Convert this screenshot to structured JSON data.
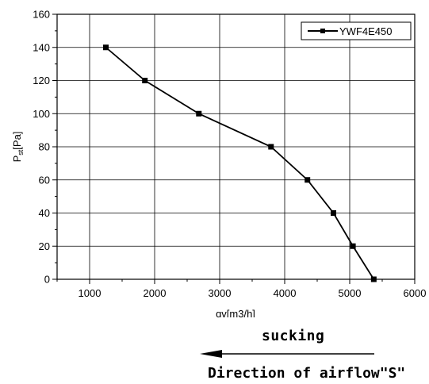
{
  "chart_data": {
    "type": "line",
    "title": "",
    "xlabel": "qv[m3/h]",
    "ylabel_main": "P",
    "ylabel_sub": "st",
    "ylabel_unit": "[Pa]",
    "xlim": [
      500,
      6000
    ],
    "ylim": [
      0,
      160
    ],
    "xticks": [
      1000,
      2000,
      3000,
      4000,
      5000,
      6000
    ],
    "yticks": [
      0,
      20,
      40,
      60,
      80,
      100,
      120,
      140,
      160
    ],
    "grid": true,
    "legend_position": "top-right",
    "series": [
      {
        "name": "YWF4E450",
        "color": "#000000",
        "marker": "square",
        "x": [
          1250,
          1850,
          2680,
          3790,
          4350,
          4750,
          5050,
          5370
        ],
        "y": [
          140,
          120,
          100,
          80,
          60,
          40,
          20,
          0
        ]
      }
    ]
  },
  "captions": {
    "sucking": "sucking",
    "direction": "Direction of airflow\"S\""
  }
}
